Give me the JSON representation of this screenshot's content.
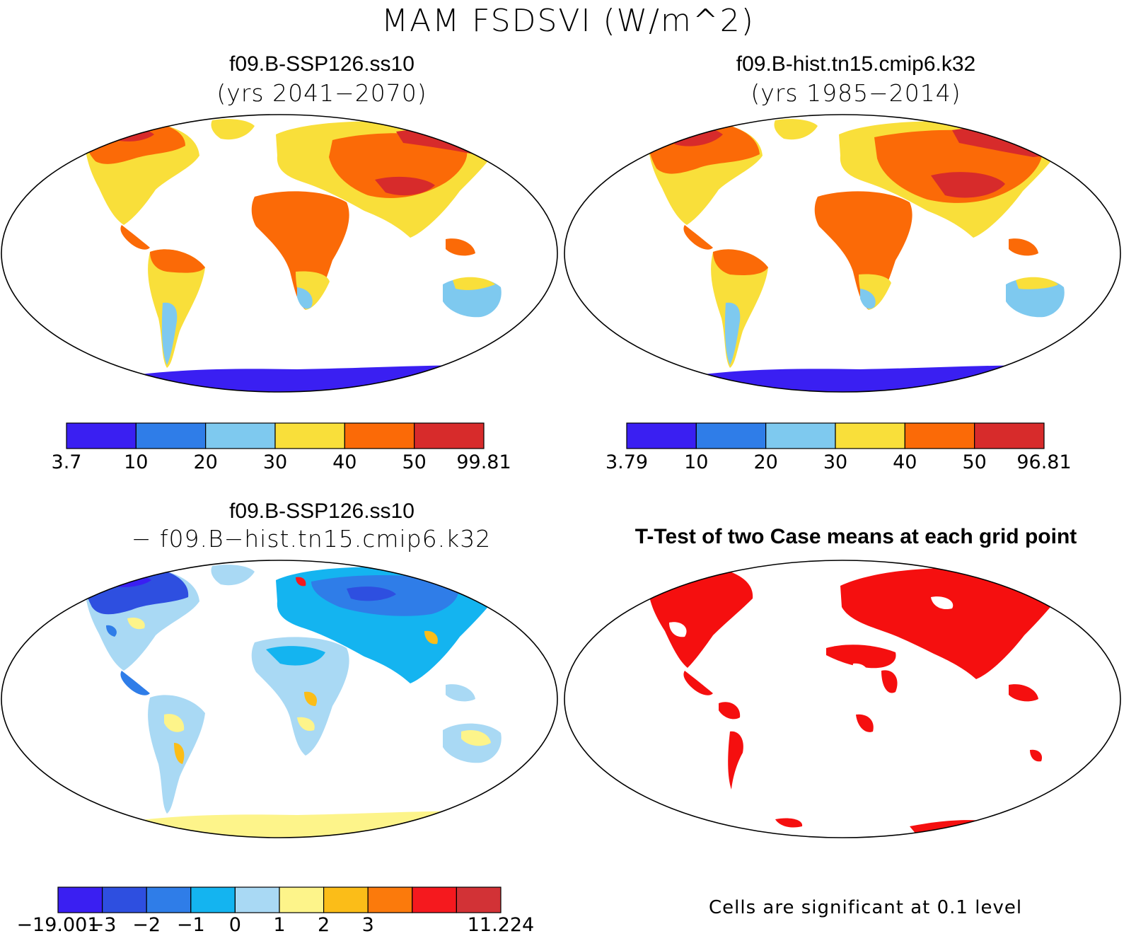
{
  "figure": {
    "title": "MAM FSDSVI (W/m^2)"
  },
  "panels": {
    "top_left": {
      "title": "f09.B-SSP126.ss10",
      "subtitle": "(yrs 2041−2070)",
      "colorbar": {
        "labels": [
          "3.7",
          "10",
          "20",
          "30",
          "40",
          "50",
          "99.81"
        ],
        "colors": [
          "#3a1ff2",
          "#2f7de8",
          "#7ec9ef",
          "#f9df3a",
          "#fb6a07",
          "#d72b2b"
        ]
      }
    },
    "top_right": {
      "title": "f09.B-hist.tn15.cmip6.k32",
      "subtitle": "(yrs 1985−2014)",
      "colorbar": {
        "labels": [
          "3.79",
          "10",
          "20",
          "30",
          "40",
          "50",
          "96.81"
        ],
        "colors": [
          "#3a1ff2",
          "#2f7de8",
          "#7ec9ef",
          "#f9df3a",
          "#fb6a07",
          "#d72b2b"
        ]
      }
    },
    "bottom_left": {
      "title": "f09.B-SSP126.ss10",
      "subtitle": "− f09.B−hist.tn15.cmip6.k32",
      "colorbar": {
        "labels": [
          "−19.001",
          "−3",
          "−2",
          "−1",
          "0",
          "1",
          "2",
          "3",
          "11.224"
        ],
        "label_positions": [
          0,
          1,
          2,
          3,
          4,
          5,
          6,
          7,
          10
        ],
        "colors": [
          "#3a1ff2",
          "#2e4fe0",
          "#2f7de8",
          "#14b4f0",
          "#a9d9f4",
          "#fdf48a",
          "#fbbd18",
          "#fb7a0c",
          "#f5191e",
          "#d23236"
        ]
      }
    },
    "bottom_right": {
      "title": "T-Test of two Case means at each grid point",
      "note": "Cells are significant at 0.1 level",
      "significance_color": "#f50f0f"
    }
  }
}
